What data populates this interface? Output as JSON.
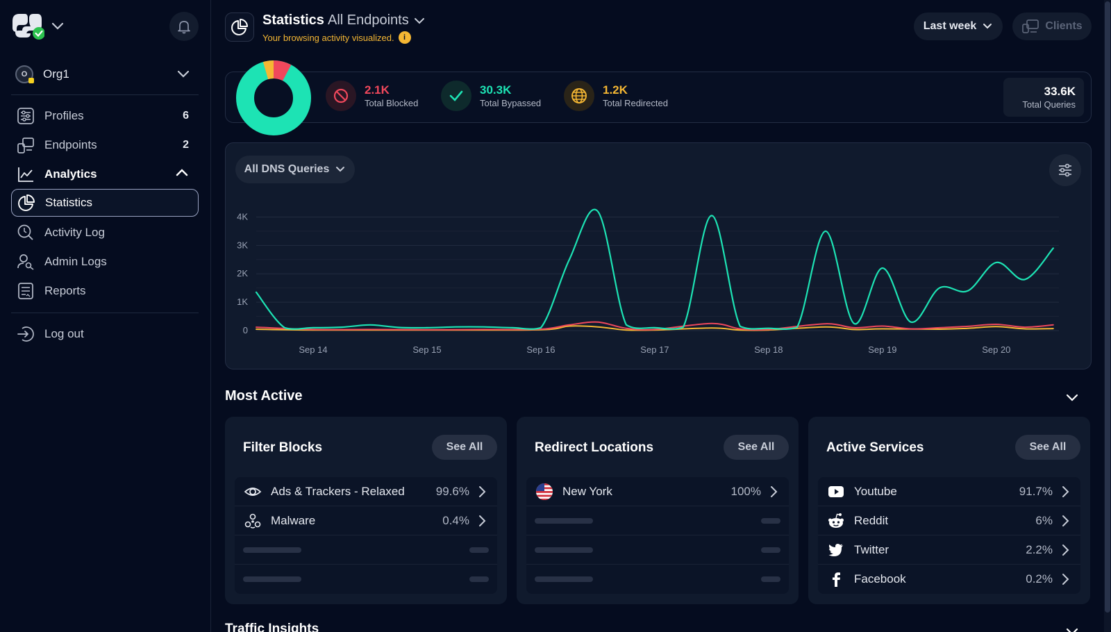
{
  "sidebar": {
    "org": {
      "initial": "O",
      "name": "Org1"
    },
    "items": [
      {
        "label": "Profiles",
        "count": "6"
      },
      {
        "label": "Endpoints",
        "count": "2"
      },
      {
        "label": "Analytics"
      },
      {
        "label": "Statistics"
      },
      {
        "label": "Activity Log"
      },
      {
        "label": "Admin Logs"
      },
      {
        "label": "Reports"
      }
    ],
    "logout": "Log out"
  },
  "header": {
    "title": "Statistics",
    "scope": "All Endpoints",
    "subtitle": "Your browsing activity visualized.",
    "info_glyph": "i",
    "range": "Last week",
    "clients": "Clients"
  },
  "summary": {
    "blocked": {
      "value": "2.1K",
      "label": "Total Blocked"
    },
    "bypassed": {
      "value": "30.3K",
      "label": "Total Bypassed"
    },
    "redirected": {
      "value": "1.2K",
      "label": "Total Redirected"
    },
    "total": {
      "value": "33.6K",
      "label": "Total Queries"
    }
  },
  "colors": {
    "bypassed": "#1de3b4",
    "blocked": "#f0485c",
    "redirected": "#f5b733"
  },
  "chart": {
    "filter_label": "All DNS Queries"
  },
  "chart_data": {
    "type": "line",
    "x_labels": [
      "Sep 14",
      "Sep 15",
      "Sep 16",
      "Sep 17",
      "Sep 18",
      "Sep 19",
      "Sep 20"
    ],
    "y_ticks": [
      "0",
      "1K",
      "2K",
      "3K",
      "4K"
    ],
    "ylim": [
      0,
      4500
    ],
    "grid": true,
    "series": [
      {
        "key": "bypassed",
        "color": "#1de3b4",
        "points": [
          [
            13.5,
            1350
          ],
          [
            13.75,
            100
          ],
          [
            14,
            100
          ],
          [
            14.25,
            120
          ],
          [
            14.5,
            200
          ],
          [
            14.75,
            110
          ],
          [
            15,
            100
          ],
          [
            15.25,
            130
          ],
          [
            15.5,
            130
          ],
          [
            15.75,
            100
          ],
          [
            16,
            100
          ],
          [
            16.25,
            2500
          ],
          [
            16.5,
            4200
          ],
          [
            16.75,
            200
          ],
          [
            17,
            100
          ],
          [
            17.25,
            120
          ],
          [
            17.5,
            4050
          ],
          [
            17.75,
            150
          ],
          [
            18,
            80
          ],
          [
            18.25,
            120
          ],
          [
            18.5,
            3500
          ],
          [
            18.75,
            250
          ],
          [
            19,
            2200
          ],
          [
            19.25,
            300
          ],
          [
            19.5,
            1500
          ],
          [
            19.75,
            1400
          ],
          [
            20,
            2400
          ],
          [
            20.25,
            1800
          ],
          [
            20.5,
            2900
          ]
        ]
      },
      {
        "key": "blocked",
        "color": "#f0485c",
        "points": [
          [
            13.5,
            120
          ],
          [
            14,
            40
          ],
          [
            14.5,
            40
          ],
          [
            15,
            30
          ],
          [
            15.5,
            40
          ],
          [
            16,
            50
          ],
          [
            16.25,
            200
          ],
          [
            16.5,
            300
          ],
          [
            16.75,
            80
          ],
          [
            17,
            40
          ],
          [
            17.5,
            250
          ],
          [
            17.75,
            60
          ],
          [
            18,
            40
          ],
          [
            18.5,
            240
          ],
          [
            18.75,
            100
          ],
          [
            19,
            160
          ],
          [
            19.25,
            60
          ],
          [
            19.5,
            100
          ],
          [
            19.75,
            150
          ],
          [
            20,
            220
          ],
          [
            20.25,
            120
          ],
          [
            20.5,
            200
          ]
        ]
      },
      {
        "key": "redirected",
        "color": "#f5b733",
        "points": [
          [
            13.5,
            50
          ],
          [
            14,
            20
          ],
          [
            15,
            20
          ],
          [
            16,
            30
          ],
          [
            16.25,
            160
          ],
          [
            16.5,
            130
          ],
          [
            16.75,
            20
          ],
          [
            17,
            20
          ],
          [
            17.5,
            90
          ],
          [
            17.75,
            20
          ],
          [
            18,
            20
          ],
          [
            18.5,
            130
          ],
          [
            18.75,
            40
          ],
          [
            19,
            60
          ],
          [
            19.5,
            50
          ],
          [
            19.75,
            80
          ],
          [
            20,
            140
          ],
          [
            20.25,
            60
          ],
          [
            20.5,
            70
          ]
        ]
      }
    ]
  },
  "most_active": {
    "title": "Most Active",
    "see_all": "See All",
    "filter_blocks": {
      "title": "Filter Blocks",
      "rows": [
        {
          "name": "Ads & Trackers - Relaxed",
          "pct": "99.6%",
          "icon": "eye-icon"
        },
        {
          "name": "Malware",
          "pct": "0.4%",
          "icon": "biohazard-icon"
        }
      ]
    },
    "redirect_locations": {
      "title": "Redirect Locations",
      "rows": [
        {
          "name": "New York",
          "pct": "100%",
          "icon": "us-flag-icon"
        }
      ]
    },
    "active_services": {
      "title": "Active Services",
      "rows": [
        {
          "name": "Youtube",
          "pct": "91.7%",
          "icon": "youtube-icon"
        },
        {
          "name": "Reddit",
          "pct": "6%",
          "icon": "reddit-icon"
        },
        {
          "name": "Twitter",
          "pct": "2.2%",
          "icon": "twitter-icon"
        },
        {
          "name": "Facebook",
          "pct": "0.2%",
          "icon": "facebook-icon"
        }
      ]
    }
  },
  "traffic": {
    "title": "Traffic Insights"
  }
}
